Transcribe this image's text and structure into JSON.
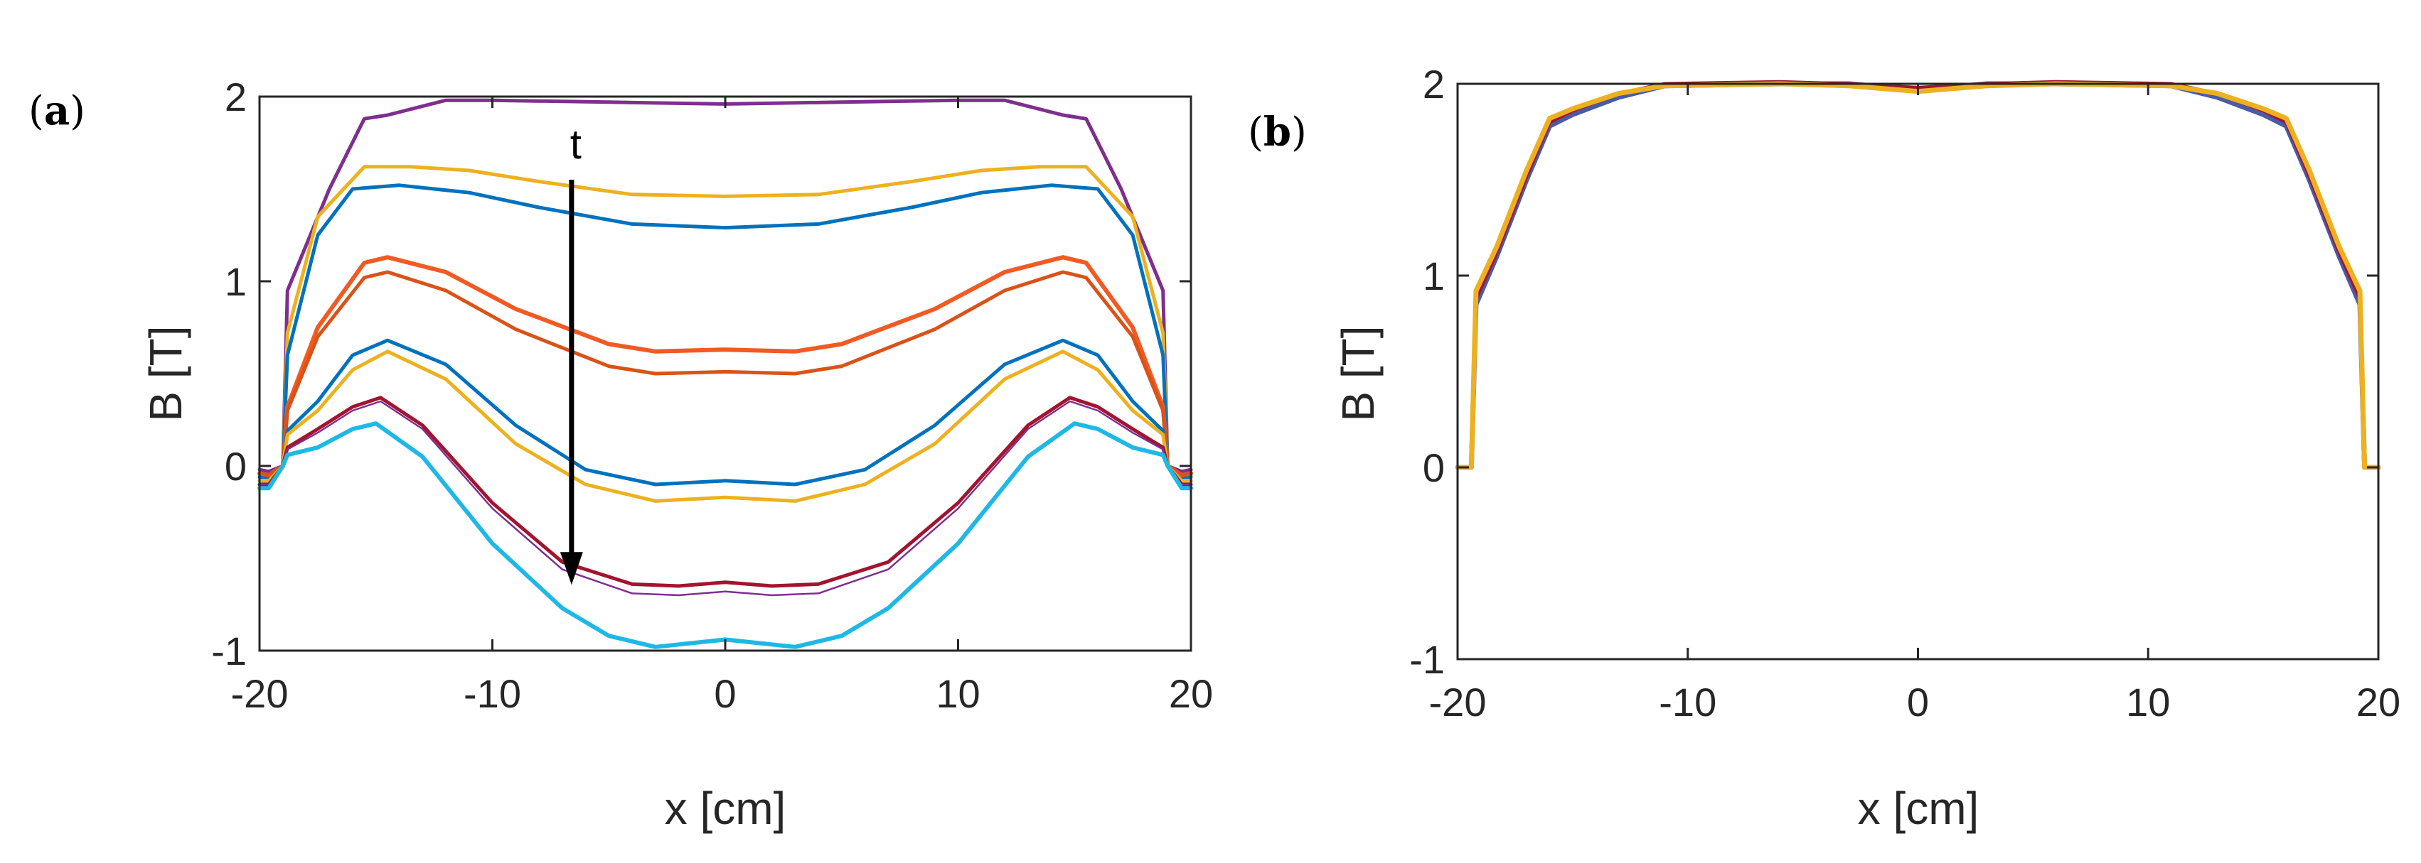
{
  "chart_data": [
    {
      "panel": "a",
      "panel_label": {
        "open": "(",
        "letter": "a",
        "close": ")"
      },
      "type": "line",
      "xlabel": "x [cm]",
      "ylabel": "B [T]",
      "xlim": [
        -20,
        20
      ],
      "ylim": [
        -1,
        2
      ],
      "xticks": [
        -20,
        -10,
        0,
        10,
        20
      ],
      "yticks": [
        -1,
        0,
        1,
        2
      ],
      "annotation": {
        "text": "t",
        "arrow_x": -6.6,
        "arrow_from": 1.55,
        "arrow_to": -0.62
      },
      "series": [
        {
          "name": "s1",
          "color": "#7E2F8E",
          "width": 5,
          "x": [
            -20,
            -19.6,
            -19,
            -18.8,
            -17,
            -15.5,
            -14.5,
            -12,
            -10,
            -5,
            0,
            5,
            10,
            12,
            14.5,
            15.5,
            17,
            18.8,
            19,
            19.6,
            20
          ],
          "y": [
            -0.02,
            -0.03,
            0.0,
            0.95,
            1.5,
            1.88,
            1.9,
            1.98,
            1.98,
            1.97,
            1.96,
            1.97,
            1.98,
            1.98,
            1.9,
            1.88,
            1.5,
            0.95,
            0.0,
            -0.03,
            -0.02
          ]
        },
        {
          "name": "s2",
          "color": "#EDB120",
          "width": 5,
          "x": [
            -20,
            -19.6,
            -19,
            -18.8,
            -17.5,
            -15.5,
            -13.5,
            -11,
            -8,
            -4,
            0,
            4,
            8,
            11,
            13.5,
            15.5,
            17.5,
            18.8,
            19,
            19.6,
            20
          ],
          "y": [
            -0.05,
            -0.05,
            0.0,
            0.72,
            1.35,
            1.62,
            1.62,
            1.6,
            1.54,
            1.47,
            1.46,
            1.47,
            1.54,
            1.6,
            1.62,
            1.62,
            1.35,
            0.72,
            0.0,
            -0.05,
            -0.05
          ]
        },
        {
          "name": "s3",
          "color": "#0072BD",
          "width": 5,
          "x": [
            -20,
            -19.6,
            -19,
            -18.8,
            -17.5,
            -16,
            -14,
            -11,
            -8,
            -4,
            0,
            4,
            8,
            11,
            14,
            16,
            17.5,
            18.8,
            19,
            19.6,
            20
          ],
          "y": [
            -0.06,
            -0.06,
            0.0,
            0.6,
            1.25,
            1.5,
            1.52,
            1.48,
            1.4,
            1.31,
            1.29,
            1.31,
            1.4,
            1.48,
            1.52,
            1.5,
            1.25,
            0.6,
            0.0,
            -0.06,
            -0.06
          ]
        },
        {
          "name": "s4",
          "color": "#F15A22",
          "width": 6,
          "x": [
            -20,
            -19.6,
            -19,
            -18.8,
            -17.5,
            -15.5,
            -14.5,
            -12,
            -9,
            -5,
            -3,
            0,
            3,
            5,
            9,
            12,
            14.5,
            15.5,
            17.5,
            18.8,
            19,
            19.6,
            20
          ],
          "y": [
            -0.04,
            -0.05,
            0.0,
            0.32,
            0.75,
            1.1,
            1.13,
            1.05,
            0.85,
            0.66,
            0.62,
            0.63,
            0.62,
            0.66,
            0.85,
            1.05,
            1.13,
            1.1,
            0.75,
            0.32,
            0.0,
            -0.05,
            -0.04
          ]
        },
        {
          "name": "s5",
          "color": "#D95319",
          "width": 5,
          "x": [
            -20,
            -19.6,
            -19,
            -18.8,
            -17.5,
            -15.5,
            -14.5,
            -12,
            -9,
            -5,
            -3,
            0,
            3,
            5,
            9,
            12,
            14.5,
            15.5,
            17.5,
            18.8,
            19,
            19.6,
            20
          ],
          "y": [
            -0.04,
            -0.05,
            0.0,
            0.3,
            0.7,
            1.02,
            1.05,
            0.95,
            0.74,
            0.54,
            0.5,
            0.51,
            0.5,
            0.54,
            0.74,
            0.95,
            1.05,
            1.02,
            0.7,
            0.3,
            0.0,
            -0.05,
            -0.04
          ]
        },
        {
          "name": "s6",
          "color": "#0072BD",
          "width": 5,
          "x": [
            -20,
            -19.6,
            -19,
            -18.8,
            -17.5,
            -16,
            -14.5,
            -12,
            -9,
            -6,
            -3,
            0,
            3,
            6,
            9,
            12,
            14.5,
            16,
            17.5,
            18.8,
            19,
            19.6,
            20
          ],
          "y": [
            -0.08,
            -0.08,
            0.0,
            0.19,
            0.35,
            0.6,
            0.68,
            0.55,
            0.22,
            -0.02,
            -0.1,
            -0.08,
            -0.1,
            -0.02,
            0.22,
            0.55,
            0.68,
            0.6,
            0.35,
            0.19,
            0.0,
            -0.08,
            -0.08
          ]
        },
        {
          "name": "s7",
          "color": "#EDB120",
          "width": 5,
          "x": [
            -20,
            -19.6,
            -19,
            -18.8,
            -17.5,
            -16,
            -14.5,
            -12,
            -9,
            -6,
            -3,
            0,
            3,
            6,
            9,
            12,
            14.5,
            16,
            17.5,
            18.8,
            19,
            19.6,
            20
          ],
          "y": [
            -0.08,
            -0.08,
            0.0,
            0.17,
            0.3,
            0.52,
            0.62,
            0.47,
            0.12,
            -0.1,
            -0.19,
            -0.17,
            -0.19,
            -0.1,
            0.12,
            0.47,
            0.62,
            0.52,
            0.3,
            0.17,
            0.0,
            -0.08,
            -0.08
          ]
        },
        {
          "name": "s8",
          "color": "#A2142F",
          "width": 5,
          "x": [
            -20,
            -19.6,
            -19,
            -18.8,
            -17.5,
            -16,
            -14.8,
            -13,
            -10,
            -7,
            -4,
            -2,
            0,
            2,
            4,
            7,
            10,
            13,
            14.8,
            16,
            17.5,
            18.8,
            19,
            19.6,
            20
          ],
          "y": [
            -0.1,
            -0.1,
            0.0,
            0.1,
            0.2,
            0.32,
            0.37,
            0.22,
            -0.2,
            -0.52,
            -0.64,
            -0.65,
            -0.63,
            -0.65,
            -0.64,
            -0.52,
            -0.2,
            0.22,
            0.37,
            0.32,
            0.2,
            0.1,
            0.0,
            -0.1,
            -0.1
          ]
        },
        {
          "name": "s9",
          "color": "#7E2F8E",
          "width": 2.5,
          "x": [
            -20,
            -19.6,
            -19,
            -18.8,
            -17.5,
            -16,
            -14.8,
            -13,
            -10,
            -7,
            -4,
            -2,
            0,
            2,
            4,
            7,
            10,
            13,
            14.8,
            16,
            17.5,
            18.8,
            19,
            19.6,
            20
          ],
          "y": [
            -0.1,
            -0.1,
            0.0,
            0.09,
            0.18,
            0.3,
            0.35,
            0.2,
            -0.23,
            -0.56,
            -0.69,
            -0.7,
            -0.68,
            -0.7,
            -0.69,
            -0.56,
            -0.23,
            0.2,
            0.35,
            0.3,
            0.18,
            0.09,
            0.0,
            -0.1,
            -0.1
          ]
        },
        {
          "name": "s10",
          "color": "#1FB8E6",
          "width": 6,
          "x": [
            -20,
            -19.6,
            -19,
            -18.8,
            -17.5,
            -16,
            -15,
            -13,
            -10,
            -7,
            -5,
            -3,
            0,
            3,
            5,
            7,
            10,
            13,
            15,
            16,
            17.5,
            18.8,
            19,
            19.6,
            20
          ],
          "y": [
            -0.12,
            -0.12,
            0.0,
            0.06,
            0.1,
            0.2,
            0.23,
            0.05,
            -0.42,
            -0.77,
            -0.92,
            -0.98,
            -0.94,
            -0.98,
            -0.92,
            -0.77,
            -0.42,
            0.05,
            0.23,
            0.2,
            0.1,
            0.06,
            0.0,
            -0.12,
            -0.12
          ]
        }
      ]
    },
    {
      "panel": "b",
      "panel_label": {
        "open": "(",
        "letter": "b",
        "close": ")"
      },
      "type": "line",
      "xlabel": "x [cm]",
      "ylabel": "B [T]",
      "xlim": [
        -20,
        20
      ],
      "ylim": [
        -1,
        2
      ],
      "xticks": [
        -20,
        -10,
        0,
        10,
        20
      ],
      "yticks": [
        -1,
        0,
        1,
        2
      ],
      "series": [
        {
          "name": "b1",
          "color": "#4A5BA5",
          "width": 7,
          "x": [
            -20,
            -19.4,
            -19.2,
            -18.3,
            -17,
            -16,
            -15,
            -13,
            -11,
            -6,
            -3,
            0,
            3,
            6,
            11,
            13,
            15,
            16,
            17,
            18.3,
            19.2,
            19.4,
            20
          ],
          "y": [
            0,
            0,
            0.85,
            1.1,
            1.5,
            1.78,
            1.84,
            1.93,
            1.99,
            2.0,
            2.0,
            1.97,
            2.0,
            2.0,
            1.99,
            1.93,
            1.84,
            1.78,
            1.5,
            1.1,
            0.85,
            0,
            0
          ]
        },
        {
          "name": "b2",
          "color": "#A2142F",
          "width": 5,
          "x": [
            -20,
            -19.4,
            -19.2,
            -18.3,
            -17,
            -16,
            -15,
            -13,
            -11,
            -6,
            -3,
            0,
            3,
            6,
            11,
            13,
            15,
            16,
            17,
            18.3,
            19.2,
            19.4,
            20
          ],
          "y": [
            0,
            0,
            0.88,
            1.12,
            1.52,
            1.8,
            1.86,
            1.95,
            2.0,
            2.01,
            2.0,
            1.98,
            2.0,
            2.01,
            2.0,
            1.95,
            1.86,
            1.8,
            1.52,
            1.12,
            0.88,
            0,
            0
          ]
        },
        {
          "name": "b3",
          "color": "#EDB120",
          "width": 7,
          "x": [
            -20,
            -19.4,
            -19.2,
            -18.3,
            -17,
            -16,
            -15,
            -13,
            -11,
            -6,
            -3,
            0,
            3,
            6,
            11,
            13,
            15,
            16,
            17,
            18.3,
            19.2,
            19.4,
            20
          ],
          "y": [
            0,
            0,
            0.92,
            1.15,
            1.55,
            1.82,
            1.87,
            1.95,
            1.99,
            2.0,
            1.99,
            1.96,
            1.99,
            2.0,
            1.99,
            1.95,
            1.87,
            1.82,
            1.55,
            1.15,
            0.92,
            0,
            0
          ]
        }
      ]
    }
  ]
}
